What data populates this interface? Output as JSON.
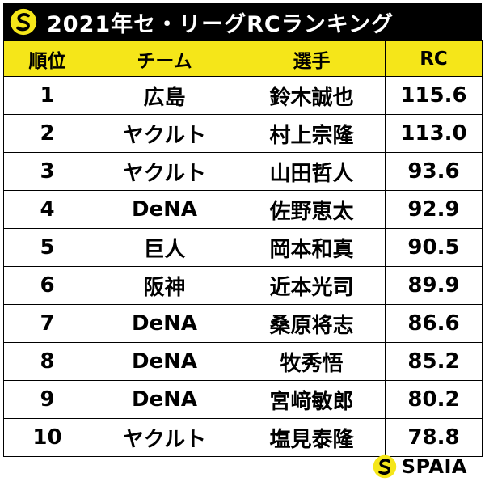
{
  "title": "2021年セ・リーグRCランキング",
  "colors": {
    "title_background": "#000000",
    "header_background": "#f5e619",
    "logo_yellow": "#f5e619"
  },
  "icons": {
    "title_logo": "spaia-logo-icon",
    "footer_logo": "spaia-logo-icon"
  },
  "table": {
    "headers": {
      "rank": "順位",
      "team": "チーム",
      "player": "選手",
      "rc": "RC"
    },
    "rows": [
      {
        "rank": "1",
        "team": "広島",
        "player": "鈴木誠也",
        "rc": "115.6"
      },
      {
        "rank": "2",
        "team": "ヤクルト",
        "player": "村上宗隆",
        "rc": "113.0"
      },
      {
        "rank": "3",
        "team": "ヤクルト",
        "player": "山田哲人",
        "rc": "93.6"
      },
      {
        "rank": "4",
        "team": "DeNA",
        "player": "佐野恵太",
        "rc": "92.9"
      },
      {
        "rank": "5",
        "team": "巨人",
        "player": "岡本和真",
        "rc": "90.5"
      },
      {
        "rank": "6",
        "team": "阪神",
        "player": "近本光司",
        "rc": "89.9"
      },
      {
        "rank": "7",
        "team": "DeNA",
        "player": "桑原将志",
        "rc": "86.6"
      },
      {
        "rank": "8",
        "team": "DeNA",
        "player": "牧秀悟",
        "rc": "85.2"
      },
      {
        "rank": "9",
        "team": "DeNA",
        "player": "宮﨑敏郎",
        "rc": "80.2"
      },
      {
        "rank": "10",
        "team": "ヤクルト",
        "player": "塩見泰隆",
        "rc": "78.8"
      }
    ]
  },
  "footer": {
    "brand": "SPAIA"
  }
}
